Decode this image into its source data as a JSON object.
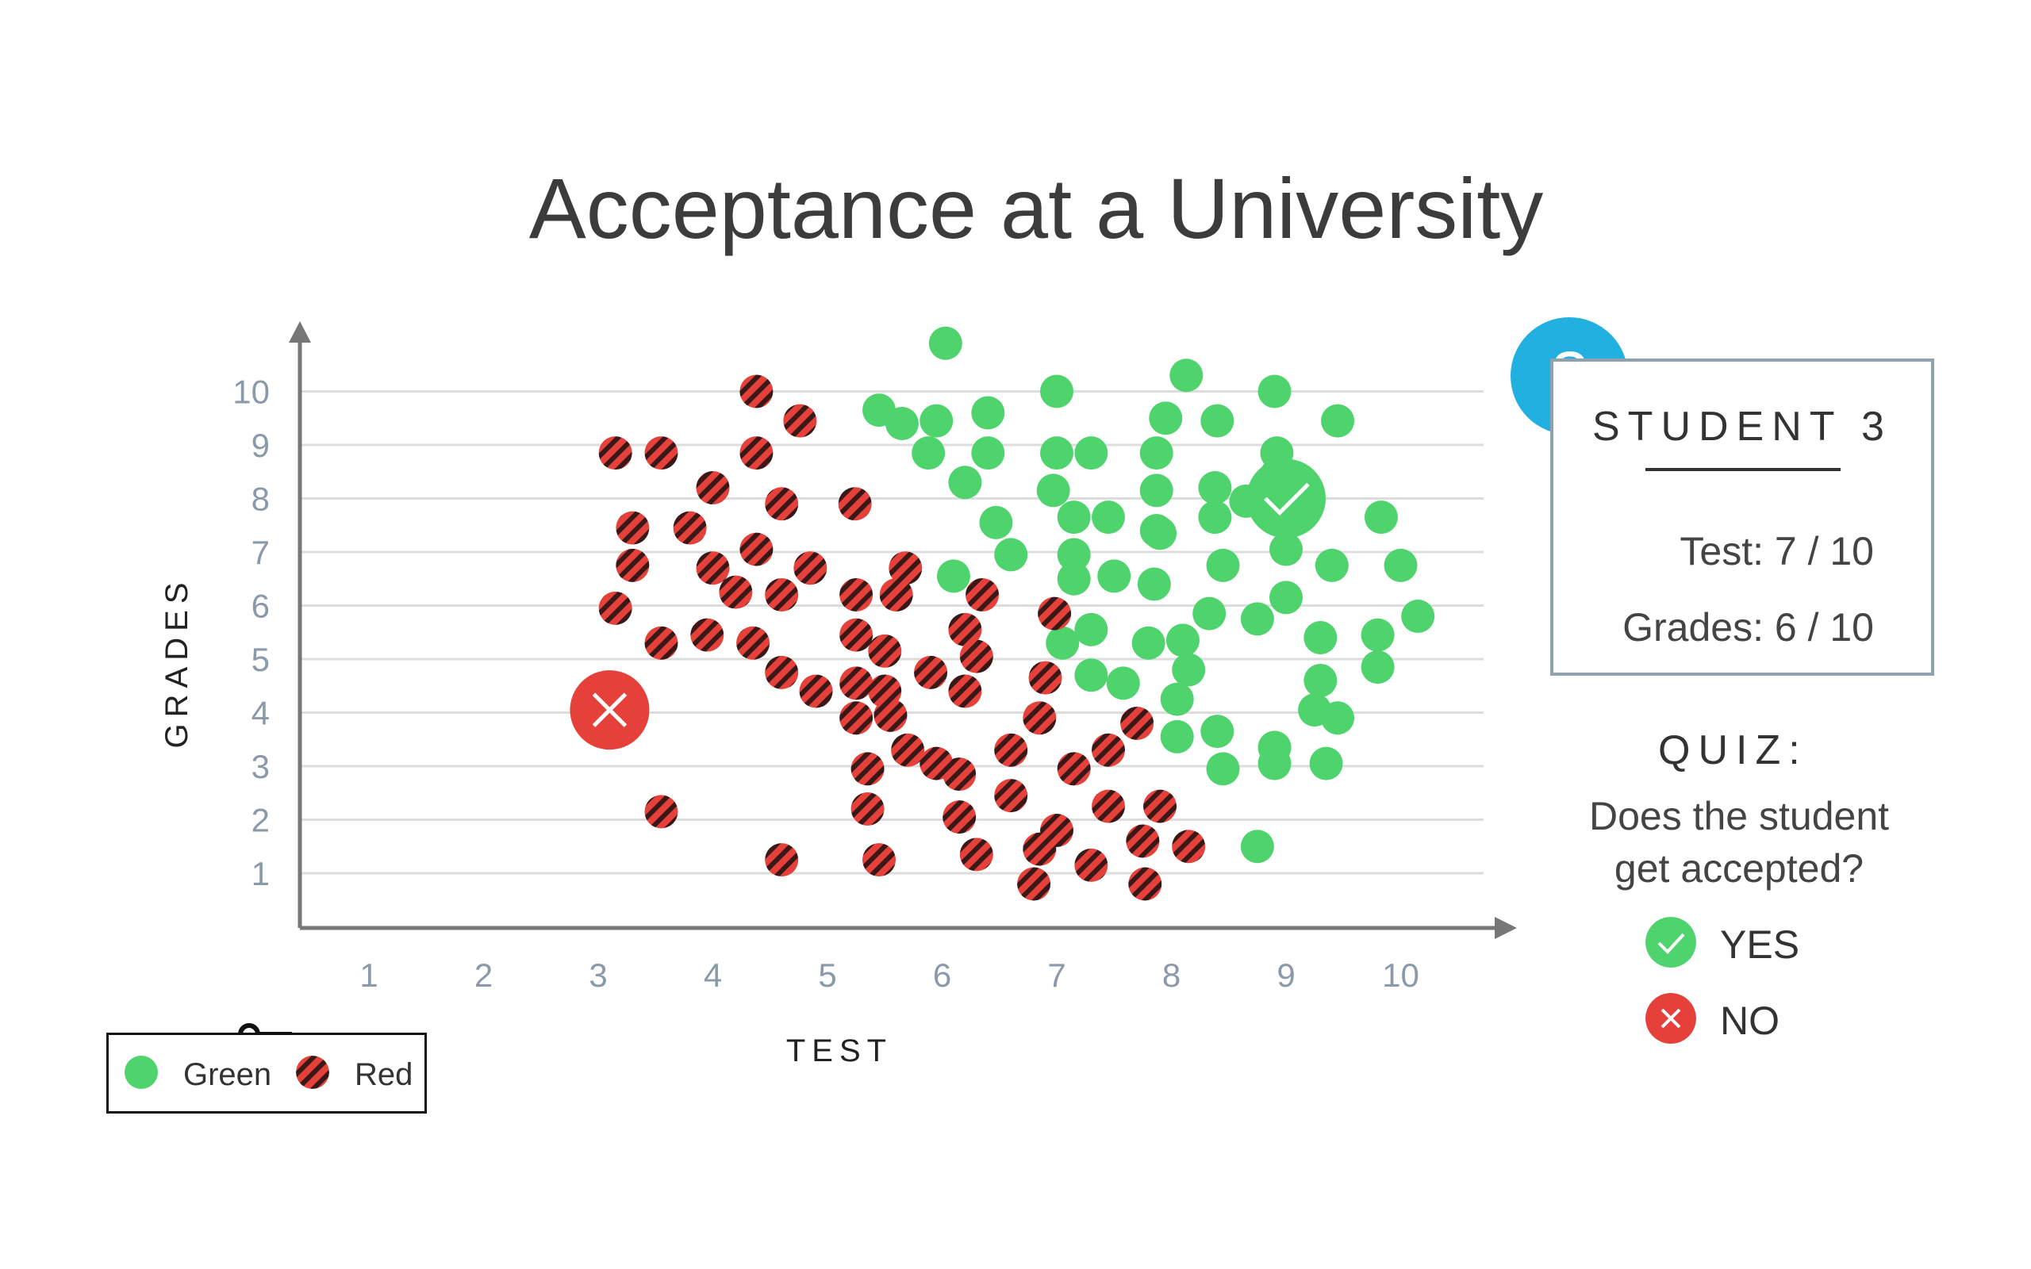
{
  "title": "Acceptance at a University",
  "panel": {
    "badge": "?",
    "heading": "STUDENT 3",
    "test_line": "Test: 7 / 10",
    "grades_line": "Grades: 6 / 10"
  },
  "quiz": {
    "title": "QUIZ:",
    "question_line1": "Does the student",
    "question_line2": "get accepted?",
    "options": [
      {
        "label": "YES",
        "color": "#4fd36d",
        "icon": "check-icon"
      },
      {
        "label": "NO",
        "color": "#e5403a",
        "icon": "x-icon"
      }
    ]
  },
  "legend": {
    "icon": "key-icon",
    "items": [
      {
        "label": "Green",
        "color": "#4fd36d",
        "style": "solid"
      },
      {
        "label": "Red",
        "color": "#e5403a",
        "style": "hatched"
      }
    ]
  },
  "chart_data": {
    "type": "scatter",
    "xlabel": "TEST",
    "ylabel": "GRADES",
    "xlim": [
      0.35,
      10.9
    ],
    "ylim": [
      0,
      10.9
    ],
    "x_ticks": [
      "1",
      "2",
      "3",
      "4",
      "5",
      "6",
      "7",
      "8",
      "9",
      "10"
    ],
    "y_ticks": [
      "1",
      "2",
      "3",
      "4",
      "5",
      "6",
      "7",
      "8",
      "9",
      "10"
    ],
    "grid": "horizontal",
    "colors": {
      "green": "#4fd36d",
      "red": "#e5403a",
      "axis": "#777777",
      "grid": "#dddddd",
      "tick": "#8a9aaa"
    },
    "series": [
      {
        "name": "Green",
        "style": "solid",
        "points": [
          [
            6.03,
            10.9
          ],
          [
            8.13,
            10.3
          ],
          [
            7.0,
            10.0
          ],
          [
            8.9,
            10.0
          ],
          [
            5.45,
            9.65
          ],
          [
            5.65,
            9.4
          ],
          [
            5.95,
            9.45
          ],
          [
            6.4,
            9.6
          ],
          [
            7.95,
            9.5
          ],
          [
            8.4,
            9.45
          ],
          [
            9.45,
            9.45
          ],
          [
            5.88,
            8.85
          ],
          [
            6.4,
            8.85
          ],
          [
            7.0,
            8.85
          ],
          [
            7.3,
            8.85
          ],
          [
            7.87,
            8.85
          ],
          [
            8.92,
            8.85
          ],
          [
            6.2,
            8.3
          ],
          [
            6.97,
            8.15
          ],
          [
            7.87,
            8.15
          ],
          [
            8.38,
            8.2
          ],
          [
            8.92,
            8.45
          ],
          [
            8.65,
            7.95
          ],
          [
            7.15,
            7.65
          ],
          [
            7.45,
            7.65
          ],
          [
            6.47,
            7.55
          ],
          [
            7.87,
            7.4
          ],
          [
            8.38,
            7.65
          ],
          [
            9.83,
            7.65
          ],
          [
            7.9,
            7.35
          ],
          [
            6.6,
            6.95
          ],
          [
            7.15,
            6.95
          ],
          [
            9.0,
            7.05
          ],
          [
            6.1,
            6.55
          ],
          [
            7.15,
            6.5
          ],
          [
            7.5,
            6.55
          ],
          [
            7.85,
            6.4
          ],
          [
            8.45,
            6.75
          ],
          [
            9.4,
            6.75
          ],
          [
            10.0,
            6.75
          ],
          [
            9.0,
            6.15
          ],
          [
            8.33,
            5.85
          ],
          [
            8.75,
            5.75
          ],
          [
            10.15,
            5.8
          ],
          [
            7.3,
            5.55
          ],
          [
            7.05,
            5.3
          ],
          [
            7.8,
            5.3
          ],
          [
            8.1,
            5.35
          ],
          [
            9.3,
            5.4
          ],
          [
            9.8,
            5.45
          ],
          [
            8.15,
            4.8
          ],
          [
            7.3,
            4.7
          ],
          [
            7.58,
            4.55
          ],
          [
            9.3,
            4.6
          ],
          [
            9.8,
            4.85
          ],
          [
            8.05,
            4.25
          ],
          [
            9.25,
            4.05
          ],
          [
            9.45,
            3.9
          ],
          [
            8.05,
            3.55
          ],
          [
            8.4,
            3.65
          ],
          [
            8.9,
            3.35
          ],
          [
            8.9,
            3.05
          ],
          [
            9.35,
            3.05
          ],
          [
            8.45,
            2.95
          ],
          [
            8.75,
            1.5
          ]
        ]
      },
      {
        "name": "Red",
        "style": "hatched",
        "points": [
          [
            4.38,
            10.0
          ],
          [
            4.76,
            9.45
          ],
          [
            3.15,
            8.85
          ],
          [
            3.55,
            8.85
          ],
          [
            4.38,
            8.85
          ],
          [
            4.0,
            8.2
          ],
          [
            4.6,
            7.9
          ],
          [
            5.24,
            7.9
          ],
          [
            3.3,
            7.45
          ],
          [
            3.8,
            7.45
          ],
          [
            4.38,
            7.05
          ],
          [
            3.3,
            6.75
          ],
          [
            4.0,
            6.7
          ],
          [
            4.85,
            6.7
          ],
          [
            5.68,
            6.7
          ],
          [
            4.2,
            6.25
          ],
          [
            4.6,
            6.2
          ],
          [
            5.25,
            6.2
          ],
          [
            5.6,
            6.2
          ],
          [
            6.35,
            6.2
          ],
          [
            3.15,
            5.95
          ],
          [
            6.98,
            5.85
          ],
          [
            3.55,
            5.3
          ],
          [
            3.95,
            5.45
          ],
          [
            4.35,
            5.3
          ],
          [
            5.25,
            5.45
          ],
          [
            5.5,
            5.15
          ],
          [
            6.2,
            5.55
          ],
          [
            6.3,
            5.05
          ],
          [
            4.6,
            4.75
          ],
          [
            5.9,
            4.75
          ],
          [
            6.9,
            4.65
          ],
          [
            4.9,
            4.4
          ],
          [
            5.25,
            4.55
          ],
          [
            5.5,
            4.4
          ],
          [
            6.2,
            4.4
          ],
          [
            5.25,
            3.9
          ],
          [
            5.55,
            3.95
          ],
          [
            6.85,
            3.9
          ],
          [
            7.7,
            3.8
          ],
          [
            5.7,
            3.3
          ],
          [
            6.6,
            3.3
          ],
          [
            7.45,
            3.3
          ],
          [
            5.35,
            2.95
          ],
          [
            5.95,
            3.05
          ],
          [
            6.15,
            2.85
          ],
          [
            7.15,
            2.95
          ],
          [
            6.6,
            2.45
          ],
          [
            3.55,
            2.15
          ],
          [
            5.35,
            2.2
          ],
          [
            6.15,
            2.05
          ],
          [
            7.45,
            2.25
          ],
          [
            7.9,
            2.25
          ],
          [
            7.0,
            1.8
          ],
          [
            6.85,
            1.45
          ],
          [
            7.75,
            1.6
          ],
          [
            8.15,
            1.5
          ],
          [
            4.6,
            1.25
          ],
          [
            5.45,
            1.25
          ],
          [
            6.3,
            1.35
          ],
          [
            7.3,
            1.15
          ],
          [
            6.8,
            0.8
          ],
          [
            7.77,
            0.8
          ]
        ]
      }
    ],
    "highlighted": [
      {
        "x": 3.1,
        "y": 4.05,
        "color": "#e5403a",
        "icon": "x-icon"
      },
      {
        "x": 9.0,
        "y": 8.0,
        "color": "#4fd36d",
        "icon": "check-icon"
      }
    ]
  }
}
